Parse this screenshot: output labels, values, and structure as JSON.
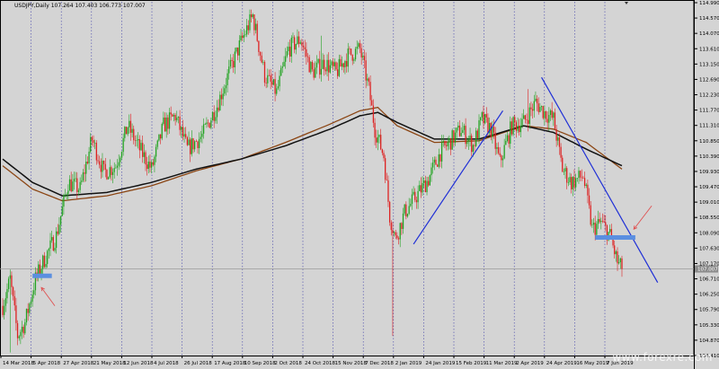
{
  "header": {
    "symbol_line": "USDJPY,Daily  107.264 107.403 106.773 107.007"
  },
  "watermark": "www.forexre.com",
  "colors": {
    "background": "#d4d4d4",
    "bull": "#22a322",
    "bear": "#dd2222",
    "grid": "#4444aa",
    "ma_fast": "#8b4513",
    "ma_slow": "#111111",
    "trendline": "#1f2fd6",
    "zone": "#5b8fe0",
    "arrow": "#e05050",
    "price_tag": "#8c8c8c"
  },
  "chart_data": {
    "type": "candlestick",
    "title": "USDJPY,Daily",
    "ohlc_readout": {
      "open": 107.264,
      "high": 107.403,
      "low": 106.773,
      "close": 107.007
    },
    "current_price_label": "107.007",
    "current_price": 107.007,
    "y_ticks": [
      "114.990",
      "114.570",
      "114.070",
      "113.610",
      "113.150",
      "112.690",
      "112.230",
      "111.770",
      "111.310",
      "110.850",
      "110.390",
      "109.930",
      "109.470",
      "109.010",
      "108.550",
      "108.090",
      "107.630",
      "107.170",
      "106.710",
      "106.250",
      "105.790",
      "105.330",
      "104.870",
      "104.410"
    ],
    "x_ticks": [
      "14 Mar 2018",
      "5 Apr 2018",
      "27 Apr 2018",
      "21 May 2018",
      "12 Jun 2018",
      "4 Jul 2018",
      "26 Jul 2018",
      "17 Aug 2018",
      "10 Sep 2018",
      "2 Oct 2018",
      "24 Oct 2018",
      "15 Nov 2018",
      "7 Dec 2018",
      "2 Jan 2019",
      "24 Jan 2019",
      "15 Feb 2019",
      "11 Mar 2019",
      "2 Apr 2019",
      "24 Apr 2019",
      "16 May 2019",
      "7 Jun 2019"
    ],
    "price_path_keypoints": [
      {
        "bar": 0,
        "price": 105.9
      },
      {
        "bar": 5,
        "price": 106.7
      },
      {
        "bar": 10,
        "price": 105.0
      },
      {
        "bar": 15,
        "price": 105.4
      },
      {
        "bar": 22,
        "price": 106.7
      },
      {
        "bar": 28,
        "price": 107.3
      },
      {
        "bar": 36,
        "price": 108.0
      },
      {
        "bar": 44,
        "price": 109.6
      },
      {
        "bar": 52,
        "price": 109.4
      },
      {
        "bar": 60,
        "price": 110.9
      },
      {
        "bar": 68,
        "price": 109.9
      },
      {
        "bar": 76,
        "price": 110.1
      },
      {
        "bar": 84,
        "price": 111.3
      },
      {
        "bar": 92,
        "price": 110.6
      },
      {
        "bar": 100,
        "price": 110.0
      },
      {
        "bar": 108,
        "price": 111.3
      },
      {
        "bar": 116,
        "price": 111.6
      },
      {
        "bar": 124,
        "price": 110.6
      },
      {
        "bar": 134,
        "price": 111.0
      },
      {
        "bar": 144,
        "price": 111.9
      },
      {
        "bar": 152,
        "price": 112.9
      },
      {
        "bar": 160,
        "price": 113.8
      },
      {
        "bar": 168,
        "price": 114.6
      },
      {
        "bar": 176,
        "price": 112.8
      },
      {
        "bar": 184,
        "price": 112.3
      },
      {
        "bar": 192,
        "price": 113.6
      },
      {
        "bar": 200,
        "price": 113.9
      },
      {
        "bar": 208,
        "price": 112.9
      },
      {
        "bar": 216,
        "price": 113.2
      },
      {
        "bar": 224,
        "price": 112.9
      },
      {
        "bar": 232,
        "price": 113.4
      },
      {
        "bar": 240,
        "price": 113.6
      },
      {
        "bar": 246,
        "price": 112.4
      },
      {
        "bar": 250,
        "price": 111.2
      },
      {
        "bar": 256,
        "price": 110.4
      },
      {
        "bar": 260,
        "price": 108.6
      },
      {
        "bar": 264,
        "price": 107.9
      },
      {
        "bar": 270,
        "price": 108.7
      },
      {
        "bar": 278,
        "price": 109.2
      },
      {
        "bar": 286,
        "price": 109.7
      },
      {
        "bar": 294,
        "price": 110.5
      },
      {
        "bar": 300,
        "price": 110.8
      },
      {
        "bar": 308,
        "price": 111.2
      },
      {
        "bar": 316,
        "price": 110.7
      },
      {
        "bar": 322,
        "price": 111.5
      },
      {
        "bar": 328,
        "price": 111.2
      },
      {
        "bar": 334,
        "price": 110.2
      },
      {
        "bar": 342,
        "price": 111.3
      },
      {
        "bar": 350,
        "price": 111.4
      },
      {
        "bar": 358,
        "price": 112.0
      },
      {
        "bar": 364,
        "price": 111.7
      },
      {
        "bar": 370,
        "price": 111.5
      },
      {
        "bar": 376,
        "price": 110.0
      },
      {
        "bar": 382,
        "price": 109.6
      },
      {
        "bar": 390,
        "price": 109.8
      },
      {
        "bar": 396,
        "price": 108.2
      },
      {
        "bar": 402,
        "price": 108.4
      },
      {
        "bar": 408,
        "price": 108.0
      },
      {
        "bar": 413,
        "price": 107.2
      },
      {
        "bar": 416,
        "price": 107.0
      }
    ],
    "spikes": [
      {
        "bar": 5,
        "low": 104.5
      },
      {
        "bar": 169,
        "high": 114.6
      },
      {
        "bar": 262,
        "low": 105.0
      },
      {
        "bar": 214,
        "high": 114.0
      },
      {
        "bar": 353,
        "high": 112.4
      }
    ],
    "ma_slow_points": [
      {
        "bar": 0,
        "price": 110.3
      },
      {
        "bar": 20,
        "price": 109.6
      },
      {
        "bar": 40,
        "price": 109.2
      },
      {
        "bar": 70,
        "price": 109.3
      },
      {
        "bar": 100,
        "price": 109.6
      },
      {
        "bar": 130,
        "price": 110.0
      },
      {
        "bar": 160,
        "price": 110.3
      },
      {
        "bar": 190,
        "price": 110.7
      },
      {
        "bar": 220,
        "price": 111.2
      },
      {
        "bar": 240,
        "price": 111.6
      },
      {
        "bar": 252,
        "price": 111.7
      },
      {
        "bar": 265,
        "price": 111.4
      },
      {
        "bar": 290,
        "price": 110.9
      },
      {
        "bar": 320,
        "price": 110.9
      },
      {
        "bar": 350,
        "price": 111.3
      },
      {
        "bar": 370,
        "price": 111.1
      },
      {
        "bar": 392,
        "price": 110.6
      },
      {
        "bar": 416,
        "price": 110.1
      }
    ],
    "ma_fast_points": [
      {
        "bar": 0,
        "price": 110.1
      },
      {
        "bar": 20,
        "price": 109.4
      },
      {
        "bar": 40,
        "price": 109.05
      },
      {
        "bar": 70,
        "price": 109.2
      },
      {
        "bar": 100,
        "price": 109.5
      },
      {
        "bar": 130,
        "price": 109.95
      },
      {
        "bar": 160,
        "price": 110.3
      },
      {
        "bar": 190,
        "price": 110.8
      },
      {
        "bar": 220,
        "price": 111.35
      },
      {
        "bar": 240,
        "price": 111.75
      },
      {
        "bar": 252,
        "price": 111.85
      },
      {
        "bar": 265,
        "price": 111.3
      },
      {
        "bar": 290,
        "price": 110.8
      },
      {
        "bar": 320,
        "price": 110.85
      },
      {
        "bar": 350,
        "price": 111.3
      },
      {
        "bar": 370,
        "price": 111.2
      },
      {
        "bar": 392,
        "price": 110.8
      },
      {
        "bar": 416,
        "price": 110.0
      }
    ],
    "annotations": {
      "uptrend_line": {
        "from": {
          "bar": 276,
          "price": 107.75
        },
        "to": {
          "bar": 336,
          "price": 111.75
        }
      },
      "downtrend_line": {
        "from": {
          "bar": 362,
          "price": 112.75
        },
        "to": {
          "bar": 440,
          "price": 106.6
        }
      },
      "support_zone_left": {
        "bar_from": 20,
        "bar_to": 33,
        "price": 106.8
      },
      "support_zone_right": {
        "bar_from": 398,
        "bar_to": 425,
        "price": 107.95
      },
      "arrow_left": {
        "from": {
          "bar": 35,
          "price": 105.9
        },
        "to": {
          "bar": 26,
          "price": 106.45
        }
      },
      "arrow_right": {
        "from": {
          "bar": 436,
          "price": 108.9
        },
        "to": {
          "bar": 424,
          "price": 108.2
        }
      }
    },
    "bar_count": 417,
    "y_range": [
      104.41,
      114.99
    ],
    "grid": true
  }
}
